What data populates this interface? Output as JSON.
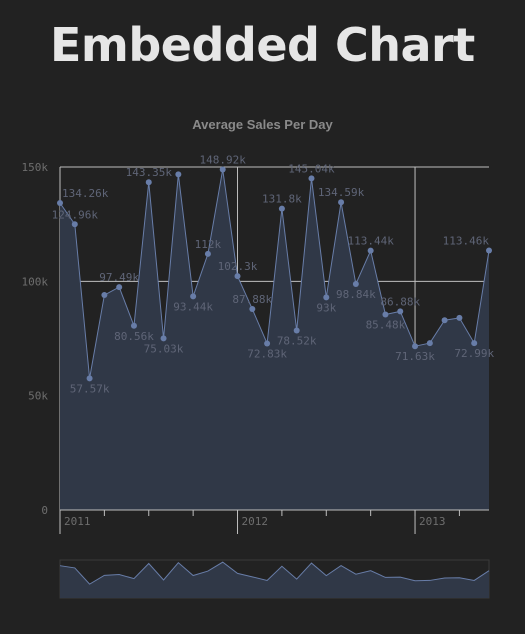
{
  "page": {
    "heading": "Embedded Chart"
  },
  "chart_data": {
    "type": "area",
    "title": "Average Sales Per Day",
    "xlabel": "",
    "ylabel": "",
    "ylim": [
      0,
      150000
    ],
    "y_ticks": [
      {
        "value": 0,
        "label": "0"
      },
      {
        "value": 50000,
        "label": "50k"
      },
      {
        "value": 100000,
        "label": "100k"
      },
      {
        "value": 150000,
        "label": "150k"
      }
    ],
    "x_ticks": [
      {
        "index": 0,
        "label": "2011"
      },
      {
        "index": 12,
        "label": "2012"
      },
      {
        "index": 24,
        "label": "2013"
      }
    ],
    "series": [
      {
        "values": [
          {
            "v": 134260,
            "label": "134.26k"
          },
          {
            "v": 124960,
            "label": "124.96k"
          },
          {
            "v": 57570,
            "label": "57.57k"
          },
          {
            "v": 94000,
            "label": ""
          },
          {
            "v": 97490,
            "label": "97.49k"
          },
          {
            "v": 80560,
            "label": "80.56k"
          },
          {
            "v": 143350,
            "label": "143.35k"
          },
          {
            "v": 75030,
            "label": "75.03k"
          },
          {
            "v": 146800,
            "label": ""
          },
          {
            "v": 93440,
            "label": "93.44k"
          },
          {
            "v": 112000,
            "label": "112k"
          },
          {
            "v": 148920,
            "label": "148.92k"
          },
          {
            "v": 102300,
            "label": "102.3k"
          },
          {
            "v": 87880,
            "label": "87.88k"
          },
          {
            "v": 72830,
            "label": "72.83k"
          },
          {
            "v": 131800,
            "label": "131.8k"
          },
          {
            "v": 78520,
            "label": "78.52k"
          },
          {
            "v": 145040,
            "label": "145.04k"
          },
          {
            "v": 93000,
            "label": "93k"
          },
          {
            "v": 134590,
            "label": "134.59k"
          },
          {
            "v": 98840,
            "label": "98.84k"
          },
          {
            "v": 113440,
            "label": "113.44k"
          },
          {
            "v": 85480,
            "label": "85.48k"
          },
          {
            "v": 86880,
            "label": "86.88k"
          },
          {
            "v": 71630,
            "label": "71.63k"
          },
          {
            "v": 73000,
            "label": ""
          },
          {
            "v": 83000,
            "label": ""
          },
          {
            "v": 84000,
            "label": ""
          },
          {
            "v": 72990,
            "label": "72.99k"
          },
          {
            "v": 113460,
            "label": "113.46k"
          }
        ]
      }
    ],
    "grid": true,
    "legend": "none",
    "navigator": true,
    "colors": {
      "background": "#222222",
      "series_line": "#687da8",
      "series_fill": "#303847",
      "grid": "#bfbfbf",
      "tick_text": "#6e6e6e",
      "data_label_text": "#5f6577",
      "title_text": "#8a8a8a",
      "heading_text": "#e6e6e6"
    }
  }
}
